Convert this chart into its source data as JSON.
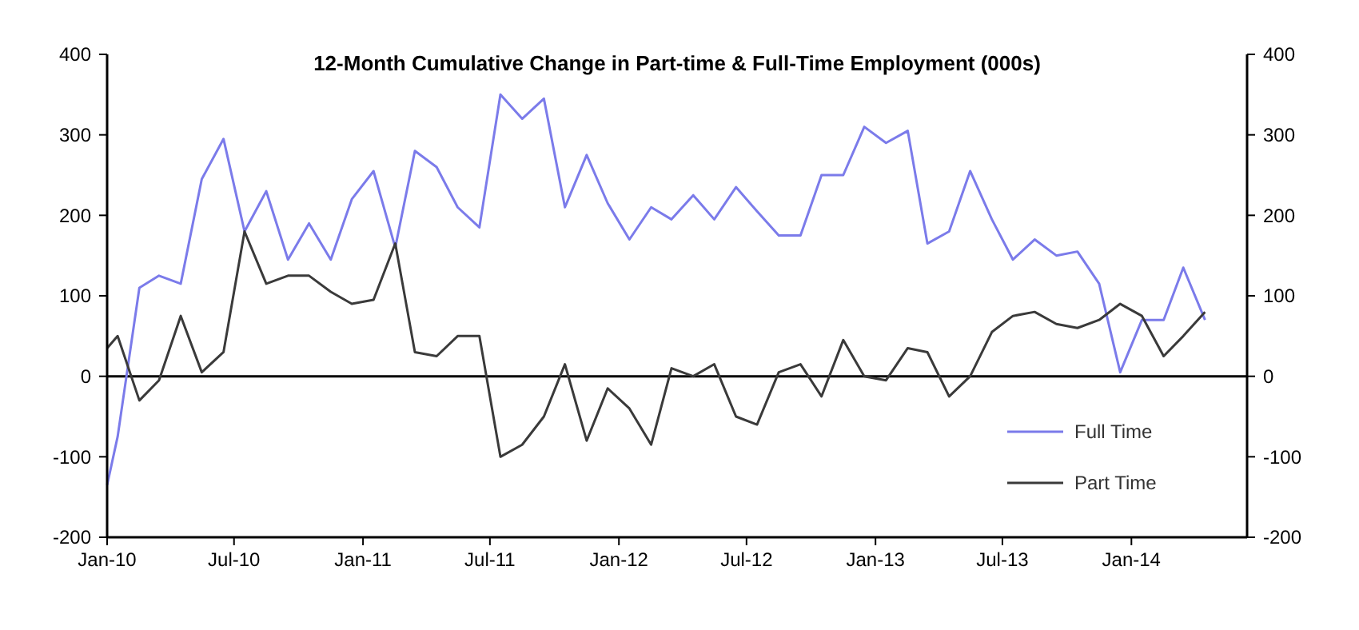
{
  "chart_data": {
    "type": "line",
    "title": "12-Month Cumulative Change in  Part-time & Full-Time Employment (000s)",
    "x": [
      "2010-01-01",
      "2010-01-16",
      "2010-02-16",
      "2010-03-16",
      "2010-04-16",
      "2010-05-16",
      "2010-06-16",
      "2010-07-16",
      "2010-08-16",
      "2010-09-16",
      "2010-10-16",
      "2010-11-16",
      "2010-12-16",
      "2011-01-16",
      "2011-02-16",
      "2011-03-16",
      "2011-04-16",
      "2011-05-16",
      "2011-06-16",
      "2011-07-16",
      "2011-08-16",
      "2011-09-16",
      "2011-10-16",
      "2011-11-16",
      "2011-12-16",
      "2012-01-16",
      "2012-02-16",
      "2012-03-16",
      "2012-04-16",
      "2012-05-16",
      "2012-06-16",
      "2012-07-16",
      "2012-08-16",
      "2012-09-16",
      "2012-10-16",
      "2012-11-16",
      "2012-12-16",
      "2013-01-16",
      "2013-02-16",
      "2013-03-16",
      "2013-04-16",
      "2013-05-16",
      "2013-06-16",
      "2013-07-16",
      "2013-08-16",
      "2013-09-16",
      "2013-10-16",
      "2013-11-16",
      "2013-12-16",
      "2014-01-16",
      "2014-02-16",
      "2014-03-16",
      "2014-04-16"
    ],
    "series": [
      {
        "name": "Full Time",
        "color": "#7b7bea",
        "values": [
          -135,
          -75,
          110,
          125,
          115,
          245,
          295,
          180,
          230,
          145,
          190,
          145,
          220,
          255,
          160,
          280,
          260,
          210,
          185,
          350,
          320,
          345,
          210,
          275,
          215,
          170,
          210,
          195,
          225,
          195,
          235,
          205,
          175,
          175,
          250,
          250,
          310,
          290,
          305,
          165,
          180,
          255,
          195,
          145,
          170,
          150,
          155,
          115,
          5,
          70,
          70,
          135,
          70
        ]
      },
      {
        "name": "Part Time",
        "color": "#3a3a3a",
        "values": [
          35,
          50,
          -30,
          -5,
          75,
          5,
          30,
          180,
          115,
          125,
          125,
          105,
          90,
          95,
          165,
          30,
          25,
          50,
          50,
          -100,
          -85,
          -50,
          15,
          -80,
          -15,
          -40,
          -85,
          10,
          0,
          15,
          -50,
          -60,
          5,
          15,
          -25,
          45,
          0,
          -5,
          35,
          30,
          -25,
          0,
          55,
          75,
          80,
          65,
          60,
          70,
          90,
          75,
          25,
          50,
          80
        ]
      }
    ],
    "xlim": [
      "2010-01-01",
      "2014-06-15"
    ],
    "xticks": [
      {
        "value": "2010-01",
        "label": "Jan-10"
      },
      {
        "value": "2010-07",
        "label": "Jul-10"
      },
      {
        "value": "2011-01",
        "label": "Jan-11"
      },
      {
        "value": "2011-07",
        "label": "Jul-11"
      },
      {
        "value": "2012-01",
        "label": "Jan-12"
      },
      {
        "value": "2012-07",
        "label": "Jul-12"
      },
      {
        "value": "2013-01",
        "label": "Jan-13"
      },
      {
        "value": "2013-07",
        "label": "Jul-13"
      },
      {
        "value": "2014-01",
        "label": "Jan-14"
      }
    ],
    "ylim": [
      -200,
      400
    ],
    "yticks": [
      -200,
      -100,
      0,
      100,
      200,
      300,
      400
    ],
    "y2lim": [
      -200,
      400
    ],
    "y2ticks": [
      -200,
      -100,
      0,
      100,
      200,
      300,
      400
    ],
    "ref_lines": [
      {
        "axis": "y",
        "value": 0,
        "color": "#000000"
      }
    ],
    "legend": "bottom right",
    "grid": false,
    "marker": "none",
    "line_style": "solid"
  }
}
